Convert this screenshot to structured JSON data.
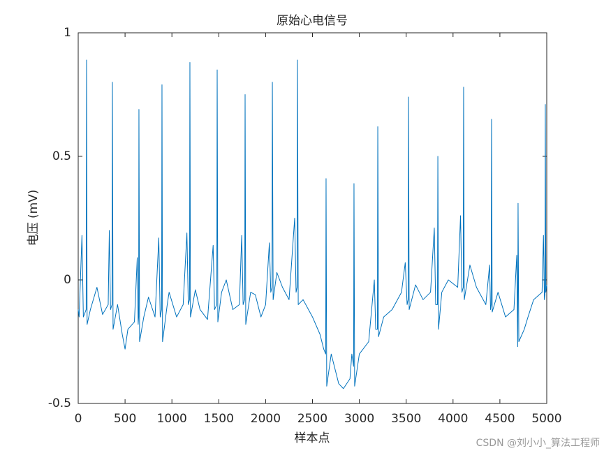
{
  "chart_data": {
    "type": "line",
    "title": "原始心电信号",
    "x_label": "样本点",
    "y_label": "电压 (mV)",
    "watermark": "CSDN @刘小小_算法工程师",
    "color": "#0072bd",
    "xlim": [
      0,
      5000
    ],
    "xticks": [
      0,
      500,
      1000,
      1500,
      2000,
      2500,
      3000,
      3500,
      4000,
      4500,
      5000
    ],
    "ylim": [
      -0.5,
      1
    ],
    "yticks": [
      -0.5,
      0,
      0.5,
      1
    ],
    "grid": false,
    "x": [
      0,
      10,
      40,
      55,
      85,
      89,
      95,
      130,
      200,
      260,
      320,
      332,
      345,
      361,
      365,
      372,
      420,
      470,
      500,
      530,
      600,
      630,
      640,
      645,
      648,
      655,
      700,
      750,
      820,
      860,
      875,
      890,
      894,
      900,
      950,
      970,
      1050,
      1120,
      1160,
      1175,
      1188,
      1192,
      1198,
      1250,
      1300,
      1380,
      1440,
      1455,
      1479,
      1483,
      1490,
      1530,
      1580,
      1650,
      1720,
      1745,
      1760,
      1777,
      1781,
      1788,
      1840,
      1890,
      1950,
      2000,
      2040,
      2055,
      2068,
      2072,
      2080,
      2120,
      2180,
      2250,
      2310,
      2325,
      2336,
      2340,
      2348,
      2400,
      2500,
      2580,
      2620,
      2641,
      2645,
      2652,
      2700,
      2780,
      2830,
      2900,
      2920,
      2939,
      2943,
      2950,
      3000,
      3100,
      3160,
      3175,
      3193,
      3197,
      3205,
      3260,
      3350,
      3450,
      3490,
      3510,
      3521,
      3525,
      3532,
      3600,
      3680,
      3760,
      3800,
      3815,
      3834,
      3838,
      3845,
      3880,
      3950,
      4050,
      4080,
      4095,
      4109,
      4113,
      4120,
      4180,
      4250,
      4350,
      4390,
      4400,
      4407,
      4411,
      4418,
      4480,
      4560,
      4650,
      4680,
      4690,
      4694,
      4702,
      4760,
      4800,
      4860,
      4950,
      4965,
      4975,
      4981,
      4985,
      4990,
      5000
    ],
    "values": [
      -0.12,
      -0.15,
      0.18,
      -0.15,
      -0.12,
      0.89,
      -0.18,
      -0.12,
      -0.03,
      -0.14,
      -0.1,
      0.2,
      -0.12,
      -0.1,
      0.8,
      -0.2,
      -0.1,
      -0.22,
      -0.28,
      -0.2,
      -0.17,
      0.09,
      -0.18,
      -0.15,
      0.69,
      -0.25,
      -0.15,
      -0.07,
      -0.15,
      0.17,
      -0.15,
      -0.12,
      0.79,
      -0.25,
      -0.1,
      -0.05,
      -0.15,
      -0.1,
      0.19,
      -0.1,
      -0.08,
      0.88,
      -0.15,
      -0.04,
      -0.12,
      -0.16,
      0.14,
      -0.12,
      -0.1,
      0.85,
      -0.17,
      -0.05,
      0.0,
      -0.12,
      -0.1,
      0.18,
      -0.1,
      -0.08,
      0.75,
      -0.18,
      -0.05,
      -0.06,
      -0.15,
      -0.1,
      0.15,
      -0.05,
      -0.03,
      0.8,
      -0.08,
      0.03,
      -0.03,
      -0.08,
      0.25,
      -0.05,
      -0.03,
      0.89,
      -0.1,
      -0.08,
      -0.15,
      -0.22,
      -0.28,
      -0.3,
      0.41,
      -0.43,
      -0.3,
      -0.42,
      -0.44,
      -0.4,
      -0.3,
      -0.35,
      0.39,
      -0.43,
      -0.3,
      -0.25,
      0.0,
      -0.2,
      -0.2,
      0.62,
      -0.23,
      -0.15,
      -0.12,
      -0.05,
      0.07,
      -0.1,
      -0.08,
      0.74,
      -0.12,
      -0.02,
      -0.08,
      -0.05,
      0.21,
      -0.1,
      -0.1,
      0.5,
      -0.2,
      -0.05,
      0.0,
      -0.03,
      0.26,
      -0.05,
      -0.03,
      0.78,
      -0.08,
      0.06,
      -0.03,
      -0.1,
      0.06,
      -0.12,
      -0.1,
      0.65,
      -0.13,
      -0.05,
      -0.15,
      -0.12,
      0.1,
      -0.27,
      0.31,
      -0.25,
      -0.2,
      -0.15,
      -0.08,
      -0.05,
      0.18,
      -0.08,
      -0.06,
      0.71,
      -0.05,
      -0.02
    ]
  }
}
